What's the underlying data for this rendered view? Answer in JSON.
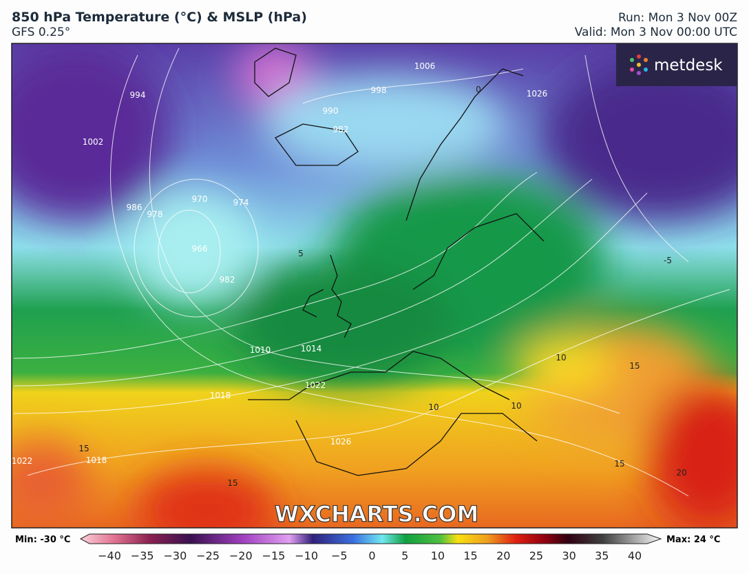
{
  "header": {
    "title": "850 hPa Temperature (°C) & MSLP (hPa)",
    "model": "GFS 0.25°",
    "run": "Run: Mon 3 Nov 00Z",
    "valid": "Valid: Mon 3 Nov 00:00 UTC"
  },
  "logo": "metdesk",
  "watermark": "WXCHARTS.COM",
  "colorbar": {
    "min_label": "Min: -30 °C",
    "max_label": "Max: 24 °C",
    "ticks": [
      "−40",
      "−35",
      "−30",
      "−25",
      "−20",
      "−15",
      "−10",
      "−5",
      "0",
      "5",
      "10",
      "15",
      "20",
      "25",
      "30",
      "35",
      "40"
    ]
  },
  "map": {
    "isobar_labels": [
      "970",
      "974",
      "966",
      "982",
      "986",
      "978",
      "1002",
      "994",
      "990",
      "982",
      "998",
      "1006",
      "1010",
      "1014",
      "1022",
      "1018",
      "1026",
      "1018",
      "1022",
      "1026"
    ],
    "temperature_labels": [
      "5",
      "10",
      "10",
      "10",
      "15",
      "15",
      "15",
      "20",
      "15",
      "-5",
      "0"
    ]
  }
}
